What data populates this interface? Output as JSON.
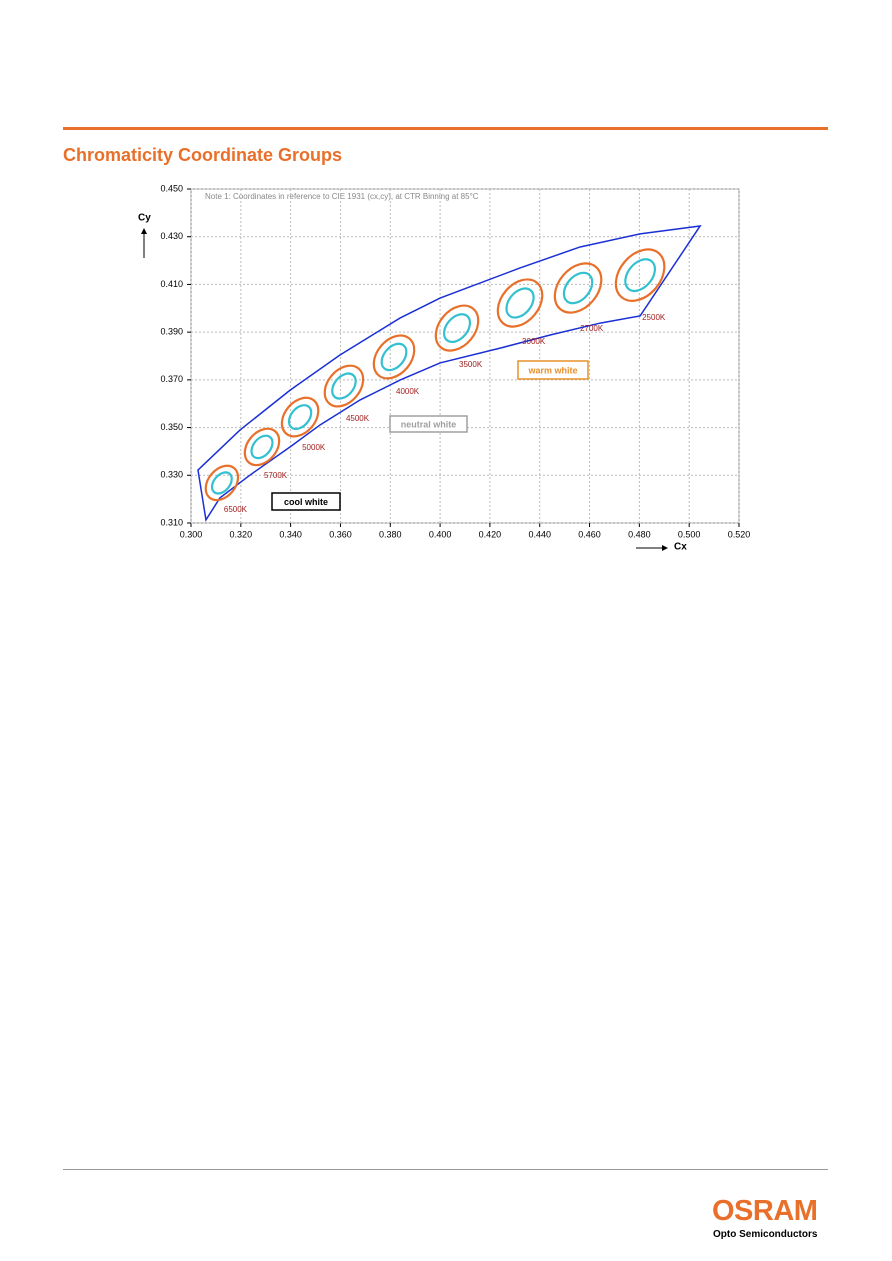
{
  "header": {
    "title": "Chromaticity Coordinate Groups"
  },
  "chart_data": {
    "type": "chromaticity",
    "note": "Note 1: Coordinates in reference to CIE 1931 (cx,cy), at CTR Binning at 85°C",
    "xlabel": "Cx",
    "ylabel": "Cy",
    "xlim": [
      0.3,
      0.52
    ],
    "ylim": [
      0.31,
      0.45
    ],
    "xticks": [
      {
        "value": 0.3,
        "label": "0.300"
      },
      {
        "value": 0.32,
        "label": "0.320"
      },
      {
        "value": 0.34,
        "label": "0.340"
      },
      {
        "value": 0.36,
        "label": "0.360"
      },
      {
        "value": 0.38,
        "label": "0.380"
      },
      {
        "value": 0.4,
        "label": "0.400"
      },
      {
        "value": 0.42,
        "label": "0.420"
      },
      {
        "value": 0.44,
        "label": "0.440"
      },
      {
        "value": 0.46,
        "label": "0.460"
      },
      {
        "value": 0.48,
        "label": "0.480"
      },
      {
        "value": 0.5,
        "label": "0.500"
      },
      {
        "value": 0.52,
        "label": "0.520"
      }
    ],
    "yticks": [
      {
        "value": 0.31,
        "label": "0.310"
      },
      {
        "value": 0.33,
        "label": "0.330"
      },
      {
        "value": 0.35,
        "label": "0.350"
      },
      {
        "value": 0.37,
        "label": "0.370"
      },
      {
        "value": 0.39,
        "label": "0.390"
      },
      {
        "value": 0.41,
        "label": "0.410"
      },
      {
        "value": 0.43,
        "label": "0.430"
      },
      {
        "value": 0.45,
        "label": "0.450"
      }
    ],
    "grid": true,
    "outline": {
      "color": "#1a2fd6",
      "x": [
        0.3028,
        0.3197,
        0.3398,
        0.3598,
        0.3839,
        0.4,
        0.4321,
        0.4562,
        0.4803,
        0.5044,
        0.4803,
        0.4643,
        0.4442,
        0.4241,
        0.4,
        0.3839,
        0.3679,
        0.3518,
        0.3398,
        0.3237,
        0.3116,
        0.306
      ],
      "y": [
        0.3322,
        0.349,
        0.3657,
        0.3804,
        0.3959,
        0.4043,
        0.4169,
        0.4257,
        0.4312,
        0.4345,
        0.3968,
        0.3938,
        0.3888,
        0.3833,
        0.3771,
        0.3699,
        0.3616,
        0.3511,
        0.3419,
        0.3301,
        0.3205,
        0.3113
      ]
    },
    "ellipses": {
      "outer_color": "#e8702a",
      "inner_color": "#33c0d0",
      "x": [
        0.3124,
        0.3285,
        0.3438,
        0.3614,
        0.3815,
        0.4068,
        0.4321,
        0.4554,
        0.4803
      ],
      "y": [
        0.3268,
        0.3419,
        0.3544,
        0.3674,
        0.3796,
        0.3917,
        0.4022,
        0.4085,
        0.4139
      ],
      "labels": [
        "6500K",
        "5700K",
        "5000K",
        "4500K",
        "4000K",
        "3500K",
        "3000K",
        "2700K",
        "2500K"
      ]
    },
    "regions": [
      {
        "label": "cool white",
        "color": "#000000"
      },
      {
        "label": "neutral white",
        "color": "#a0a0a0"
      },
      {
        "label": "warm white",
        "color": "#e8902a"
      }
    ]
  },
  "footer": {
    "brand": "OSRAM",
    "tagline": "Opto Semiconductors"
  }
}
